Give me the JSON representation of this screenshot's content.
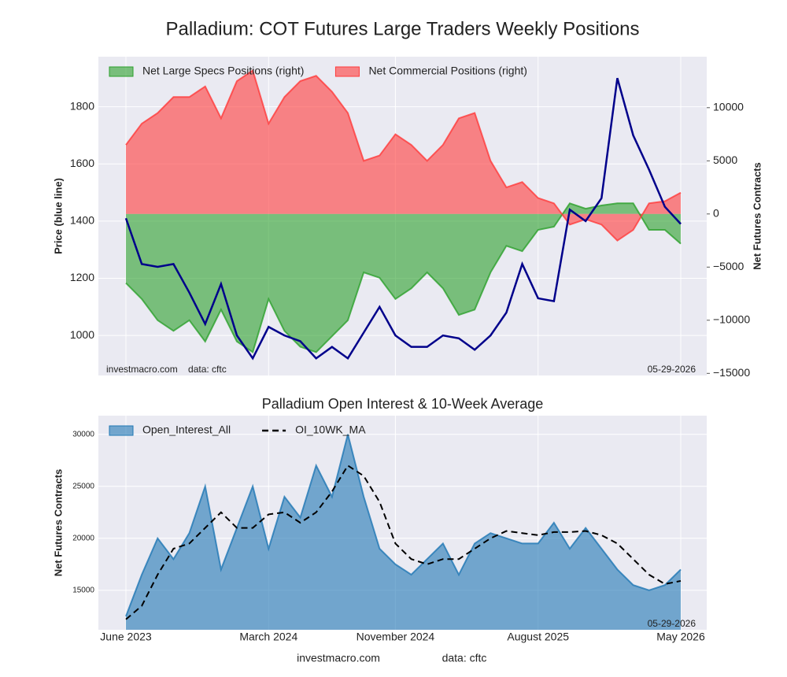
{
  "chart_data": [
    {
      "type": "area",
      "title": "Palladium: COT Futures Large Traders Weekly Positions",
      "ylabel": "Price (blue line)",
      "y2label": "Net Futures Contracts",
      "x": [
        "2023-06",
        "2023-07",
        "2023-08",
        "2023-09",
        "2023-10",
        "2023-11",
        "2023-12",
        "2024-01",
        "2024-02",
        "2024-03",
        "2024-04",
        "2024-05",
        "2024-06",
        "2024-07",
        "2024-08",
        "2024-09",
        "2024-10",
        "2024-11",
        "2024-12",
        "2025-01",
        "2025-02",
        "2025-03",
        "2025-04",
        "2025-05",
        "2025-06",
        "2025-07",
        "2025-08",
        "2025-09",
        "2025-10",
        "2025-11",
        "2025-12",
        "2026-01",
        "2026-02",
        "2026-03",
        "2026-04",
        "2026-05"
      ],
      "ylim": [
        860,
        1975
      ],
      "yticks": [
        1000,
        1200,
        1400,
        1600,
        1800
      ],
      "y2lim": [
        -15200,
        14800
      ],
      "y2ticks": [
        {
          "value": -15000,
          "label": "−15000"
        },
        {
          "value": -10000,
          "label": "−10000"
        },
        {
          "value": -5000,
          "label": "−5000"
        },
        0,
        5000,
        10000
      ],
      "grid": true,
      "legend": "upper left",
      "series": [
        {
          "name": "Net Large Specs Positions (right)",
          "color": "#2ca02c",
          "axis": "y2",
          "style": "fill",
          "values": [
            -6500,
            -8000,
            -10000,
            -11000,
            -10000,
            -12000,
            -9000,
            -12000,
            -13000,
            -8000,
            -11000,
            -12500,
            -13000,
            -11500,
            -10000,
            -5500,
            -6000,
            -8000,
            -7000,
            -5500,
            -7000,
            -9500,
            -9000,
            -5500,
            -3000,
            -3500,
            -1500,
            -1200,
            1000,
            500,
            800,
            1000,
            1000,
            -1500,
            -1500,
            -2800
          ]
        },
        {
          "name": "Net Commercial Positions (right)",
          "color": "#ff3b3b",
          "axis": "y2",
          "style": "fill",
          "values": [
            6500,
            8500,
            9500,
            11000,
            11000,
            12000,
            9000,
            12500,
            13500,
            8500,
            11000,
            12500,
            13000,
            11500,
            9500,
            5000,
            5500,
            7500,
            6500,
            5000,
            6500,
            9000,
            9500,
            5000,
            2500,
            3000,
            1500,
            1000,
            -1000,
            -500,
            -1000,
            -2500,
            -1500,
            1000,
            1200,
            2000
          ]
        },
        {
          "color": "#00008b",
          "axis": "y",
          "style": "line",
          "values": [
            1410,
            1250,
            1240,
            1250,
            1150,
            1040,
            1180,
            1000,
            920,
            1030,
            1000,
            980,
            920,
            960,
            920,
            1010,
            1100,
            1000,
            960,
            960,
            1000,
            990,
            950,
            1000,
            1080,
            1250,
            1130,
            1120,
            1440,
            1400,
            1480,
            1900,
            1700,
            1580,
            1450,
            1390
          ]
        }
      ],
      "annotations": [
        {
          "text": "investmacro.com    data: cftc",
          "position": "lower left"
        },
        {
          "text": "05-29-2026",
          "position": "lower right"
        }
      ]
    },
    {
      "type": "area",
      "title": "Palladium Open Interest & 10-Week Average",
      "ylabel": "Net Futures Contracts",
      "x": [
        "2023-06",
        "2023-07",
        "2023-08",
        "2023-09",
        "2023-10",
        "2023-11",
        "2023-12",
        "2024-01",
        "2024-02",
        "2024-03",
        "2024-04",
        "2024-05",
        "2024-06",
        "2024-07",
        "2024-08",
        "2024-09",
        "2024-10",
        "2024-11",
        "2024-12",
        "2025-01",
        "2025-02",
        "2025-03",
        "2025-04",
        "2025-05",
        "2025-06",
        "2025-07",
        "2025-08",
        "2025-09",
        "2025-10",
        "2025-11",
        "2025-12",
        "2026-01",
        "2026-02",
        "2026-03",
        "2026-04",
        "2026-05"
      ],
      "xticks": [
        {
          "value": "2023-06",
          "label": "June 2023"
        },
        {
          "value": "2024-03",
          "label": "March 2024"
        },
        {
          "value": "2024-11",
          "label": "November 2024"
        },
        {
          "value": "2025-08",
          "label": "August 2025"
        },
        {
          "value": "2026-05",
          "label": "May 2026"
        }
      ],
      "ylim": [
        11200,
        31800
      ],
      "yticks": [
        15000,
        20000,
        25000,
        30000
      ],
      "grid": true,
      "legend": "upper left",
      "series": [
        {
          "name": "Open_Interest_All",
          "color": "#1f77b4",
          "style": "fill",
          "values": [
            12500,
            16500,
            20000,
            18000,
            20500,
            25000,
            17000,
            21000,
            25000,
            19000,
            24000,
            22000,
            27000,
            24000,
            30000,
            24000,
            19000,
            17500,
            16500,
            18000,
            19500,
            16500,
            19500,
            20500,
            20000,
            19500,
            19500,
            21500,
            19000,
            21000,
            19000,
            17000,
            15500,
            15000,
            15500,
            17000
          ]
        },
        {
          "name": "OI_10WK_MA",
          "color": "#000000",
          "style": "dashed",
          "values": [
            12200,
            13500,
            16500,
            19000,
            19500,
            21000,
            22500,
            21000,
            21000,
            22300,
            22500,
            21500,
            22500,
            24500,
            27000,
            26000,
            23500,
            19500,
            18000,
            17500,
            18000,
            18000,
            19000,
            20000,
            20700,
            20500,
            20300,
            20600,
            20600,
            20700,
            20300,
            19500,
            18000,
            16500,
            15600,
            15900
          ]
        }
      ],
      "annotations": [
        {
          "text": "05-29-2026",
          "position": "lower right"
        }
      ]
    }
  ],
  "footer": {
    "site": "investmacro.com",
    "source": "data: cftc"
  }
}
